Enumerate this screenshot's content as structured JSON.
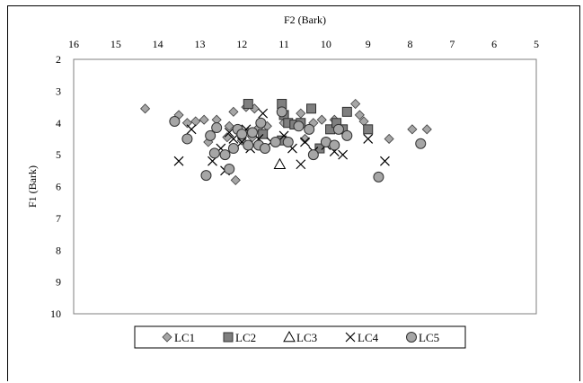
{
  "chart_data": {
    "type": "scatter",
    "xlabel": "F2 (Bark)",
    "ylabel": "F1 (Bark)",
    "xlim": [
      16,
      5
    ],
    "ylim": [
      2,
      10
    ],
    "x_ticks": [
      "16",
      "15",
      "14",
      "13",
      "12",
      "11",
      "10",
      "9",
      "8",
      "7",
      "6",
      "5"
    ],
    "y_ticks": [
      "2",
      "3",
      "4",
      "5",
      "6",
      "7",
      "8",
      "9",
      "10"
    ],
    "x_axis_position": "top",
    "x_reversed": true,
    "grid": false,
    "legend_position": "bottom",
    "series": [
      {
        "name": "LC1",
        "marker": "diamond",
        "color": "#a6a6a6",
        "points": [
          [
            14.3,
            3.55
          ],
          [
            13.5,
            3.75
          ],
          [
            13.3,
            4.0
          ],
          [
            13.1,
            3.95
          ],
          [
            12.9,
            3.9
          ],
          [
            12.8,
            4.6
          ],
          [
            12.6,
            3.9
          ],
          [
            12.35,
            4.45
          ],
          [
            12.3,
            4.1
          ],
          [
            12.2,
            3.65
          ],
          [
            12.15,
            5.8
          ],
          [
            12.0,
            4.55
          ],
          [
            11.9,
            3.5
          ],
          [
            11.85,
            4.3
          ],
          [
            11.75,
            4.45
          ],
          [
            11.7,
            3.55
          ],
          [
            11.6,
            4.15
          ],
          [
            11.4,
            4.1
          ],
          [
            11.2,
            4.6
          ],
          [
            11.0,
            4.0
          ],
          [
            10.6,
            3.7
          ],
          [
            10.5,
            4.5
          ],
          [
            10.3,
            4.0
          ],
          [
            10.1,
            3.9
          ],
          [
            10.0,
            4.6
          ],
          [
            9.8,
            3.9
          ],
          [
            9.3,
            3.4
          ],
          [
            9.2,
            3.75
          ],
          [
            9.1,
            3.95
          ],
          [
            8.5,
            4.5
          ],
          [
            7.95,
            4.2
          ],
          [
            7.6,
            4.2
          ]
        ]
      },
      {
        "name": "LC2",
        "marker": "square",
        "color": "#7f7f7f",
        "points": [
          [
            11.85,
            3.4
          ],
          [
            11.5,
            4.35
          ],
          [
            11.05,
            3.4
          ],
          [
            11.0,
            3.75
          ],
          [
            10.9,
            4.0
          ],
          [
            11.05,
            4.55
          ],
          [
            10.75,
            4.05
          ],
          [
            10.6,
            4.0
          ],
          [
            10.35,
            3.55
          ],
          [
            10.15,
            4.8
          ],
          [
            9.9,
            4.2
          ],
          [
            9.75,
            4.0
          ],
          [
            9.6,
            4.2
          ],
          [
            9.5,
            3.65
          ],
          [
            9.0,
            4.2
          ]
        ]
      },
      {
        "name": "LC3",
        "marker": "triangle",
        "color": "#ffffff",
        "points": [
          [
            11.1,
            5.3
          ]
        ]
      },
      {
        "name": "LC4",
        "marker": "x",
        "color": "#000000",
        "points": [
          [
            13.5,
            5.2
          ],
          [
            13.2,
            4.2
          ],
          [
            12.7,
            5.2
          ],
          [
            12.5,
            4.8
          ],
          [
            12.4,
            5.5
          ],
          [
            12.3,
            4.3
          ],
          [
            12.2,
            4.5
          ],
          [
            12.0,
            4.6
          ],
          [
            11.9,
            4.2
          ],
          [
            11.8,
            4.8
          ],
          [
            11.6,
            4.5
          ],
          [
            11.5,
            3.7
          ],
          [
            11.3,
            4.6
          ],
          [
            11.0,
            4.4
          ],
          [
            10.8,
            4.8
          ],
          [
            10.6,
            5.3
          ],
          [
            10.5,
            4.6
          ],
          [
            10.3,
            4.9
          ],
          [
            10.0,
            4.7
          ],
          [
            9.8,
            4.9
          ],
          [
            9.6,
            5.0
          ],
          [
            9.0,
            4.5
          ],
          [
            8.6,
            5.2
          ]
        ]
      },
      {
        "name": "LC5",
        "marker": "circle",
        "color": "#a6a6a6",
        "points": [
          [
            13.6,
            3.95
          ],
          [
            13.3,
            4.5
          ],
          [
            12.75,
            4.4
          ],
          [
            12.65,
            4.95
          ],
          [
            12.6,
            4.15
          ],
          [
            12.4,
            5.0
          ],
          [
            12.3,
            5.45
          ],
          [
            12.2,
            4.8
          ],
          [
            12.1,
            4.2
          ],
          [
            12.0,
            4.35
          ],
          [
            11.85,
            4.7
          ],
          [
            11.75,
            4.3
          ],
          [
            11.6,
            4.7
          ],
          [
            11.55,
            4.0
          ],
          [
            11.45,
            4.8
          ],
          [
            11.2,
            4.6
          ],
          [
            10.9,
            4.6
          ],
          [
            10.65,
            4.1
          ],
          [
            10.4,
            4.2
          ],
          [
            10.3,
            5.0
          ],
          [
            10.0,
            4.6
          ],
          [
            9.8,
            4.7
          ],
          [
            9.7,
            4.2
          ],
          [
            9.5,
            4.4
          ],
          [
            8.75,
            5.7
          ],
          [
            7.75,
            4.65
          ],
          [
            12.85,
            5.65
          ],
          [
            11.05,
            3.65
          ]
        ]
      }
    ]
  }
}
